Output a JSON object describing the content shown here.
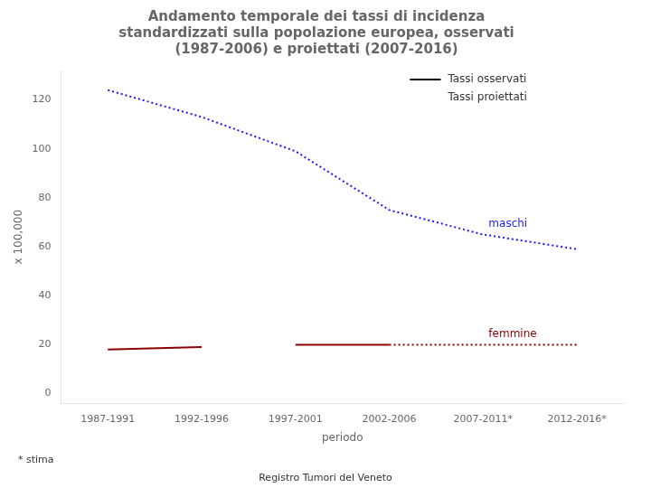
{
  "chart_data": {
    "type": "line",
    "title": "Andamento temporale dei tassi di incidenza\nstandardizzati sulla popolazione europea, osservati\n(1987-2006) e proiettati (2007-2016)",
    "x_label": "periodo",
    "y_label": "x 100,000",
    "categories": [
      "1987-1991",
      "1992-1996",
      "1997-2001",
      "2002-2006",
      "2007-2011*",
      "2012-2016*"
    ],
    "series": [
      {
        "name": "maschi",
        "color": "#1a1aff",
        "line_style": "dotted",
        "values": [
          124,
          113,
          99,
          75,
          65,
          59
        ]
      },
      {
        "name": "femmine",
        "color": "#8B0000",
        "line_style": "solid",
        "values": [
          18,
          19,
          null,
          null,
          null,
          null
        ]
      },
      {
        "name": "femmine",
        "color": "#8B0000",
        "line_style": "solid",
        "values": [
          null,
          null,
          20,
          20,
          null,
          null
        ]
      },
      {
        "name": "femmine",
        "color": "#8B0000",
        "line_style": "dotted",
        "values": [
          null,
          null,
          null,
          20,
          20,
          20
        ]
      }
    ],
    "ylim": [
      -4,
      132
    ],
    "yticks": [
      0,
      20,
      40,
      60,
      80,
      100,
      120
    ],
    "grid": false,
    "annotations": [
      {
        "text": "Tassi osservati",
        "line_style": "solid",
        "color": "black"
      },
      {
        "text": "Tassi proiettati"
      }
    ],
    "footnote": "* stima",
    "source": "Registro Tumori del Veneto"
  }
}
